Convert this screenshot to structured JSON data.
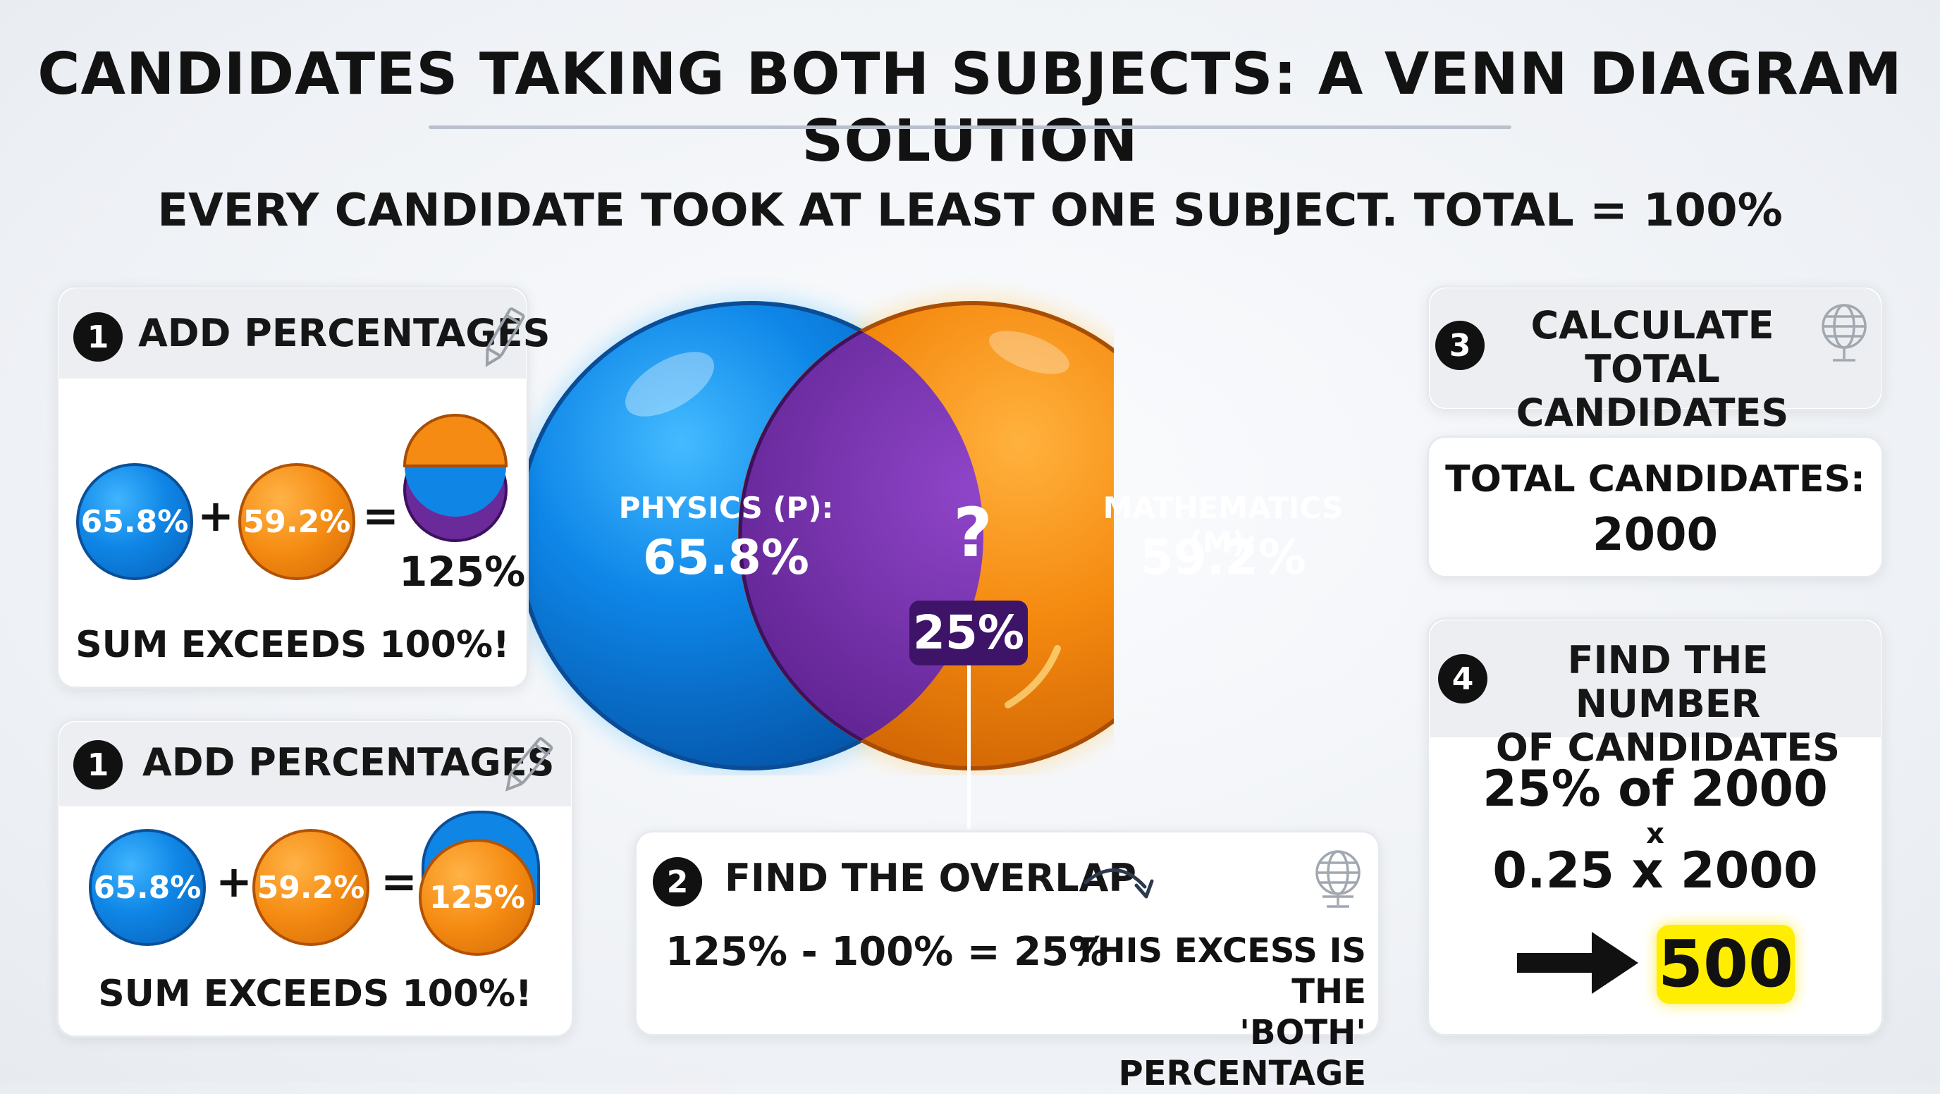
{
  "title": "CANDIDATES TAKING BOTH SUBJECTS: A VENN DIAGRAM SOLUTION",
  "subtitle": "EVERY CANDIDATE TOOK AT LEAST ONE SUBJECT. TOTAL = 100%",
  "venn": {
    "physics_label": "PHYSICS (P):",
    "physics_value": "65.8%",
    "math_label": "MATHEMATICS (M):",
    "math_value": "59.2%",
    "question": "?",
    "overlap_value": "25%"
  },
  "step1a": {
    "num": "1",
    "heading": "ADD PERCENTAGES",
    "a": "65.8%",
    "plus": "+",
    "b": "59.2%",
    "equals": "=",
    "result": "125%",
    "note": "SUM EXCEEDS 100%!"
  },
  "step1b": {
    "num": "1",
    "heading": "ADD PERCENTAGES",
    "a": "65.8%",
    "plus": "+",
    "b": "59.2%",
    "equals": "=",
    "result": "125%",
    "note": "SUM EXCEEDS 100%!"
  },
  "step2": {
    "num": "2",
    "heading": "FIND THE OVERLAP",
    "equation": "125% - 100% = 25%",
    "note_line1": "THIS EXCESS IS THE",
    "note_line2": "'BOTH' PERCENTAGE"
  },
  "step3": {
    "num": "3",
    "heading_line1": "CALCULATE TOTAL",
    "heading_line2": "CANDIDATES",
    "total_label": "TOTAL CANDIDATES:",
    "total_value": "2000"
  },
  "step4": {
    "num": "4",
    "heading_line1": "FIND THE NUMBER",
    "heading_line2": "OF CANDIDATES",
    "line1": "25% of 2000",
    "times": "x",
    "line2": "0.25 x 2000",
    "answer": "500"
  },
  "colors": {
    "physics": "#0f86e6",
    "mathematics": "#f58b12",
    "overlap": "#6a2a9a",
    "highlight": "#ffee00"
  }
}
